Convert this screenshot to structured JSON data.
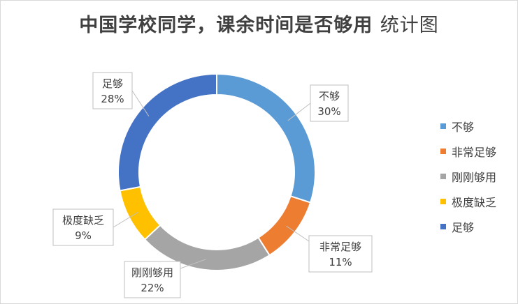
{
  "title": {
    "main": "中国学校同学，课余时间是否够用",
    "suffix": "统计图"
  },
  "chart_data": {
    "type": "pie",
    "variant": "doughnut",
    "categories": [
      "不够",
      "非常足够",
      "刚刚够用",
      "极度缺乏",
      "足够"
    ],
    "values": [
      30,
      11,
      22,
      9,
      28
    ],
    "value_labels": [
      "30%",
      "11%",
      "22%",
      "9%",
      "28%"
    ],
    "colors": [
      "#5b9bd5",
      "#ed7d31",
      "#a5a5a5",
      "#ffc000",
      "#4472c4"
    ],
    "legend": "right"
  }
}
